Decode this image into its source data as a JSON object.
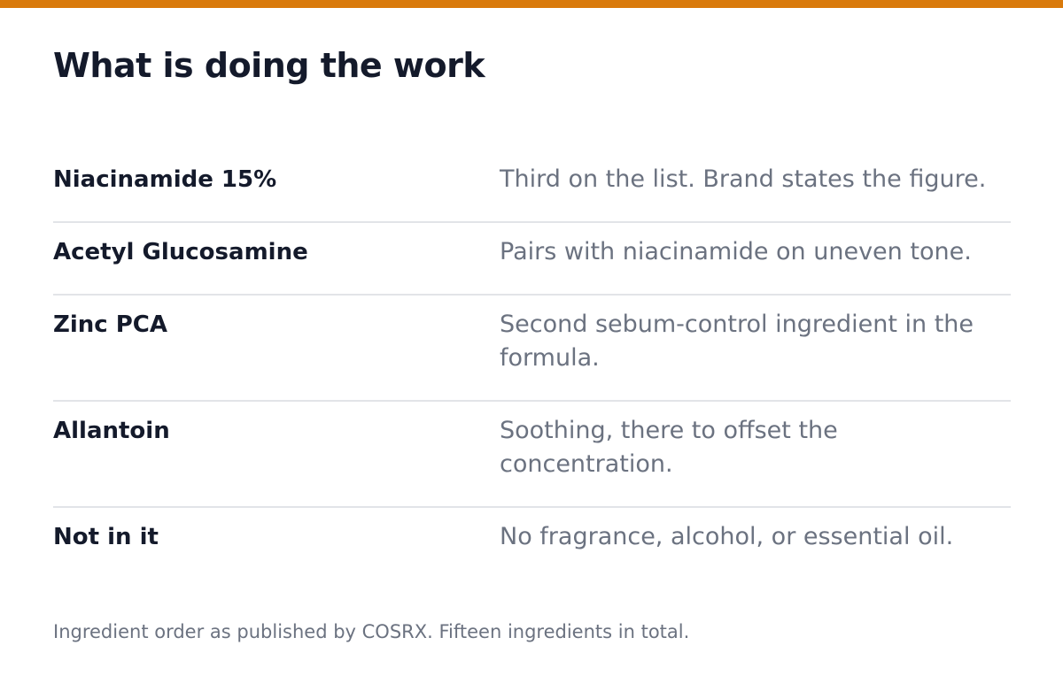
{
  "header": {
    "title": "What is doing the work"
  },
  "table": {
    "rows": [
      [
        "Niacinamide 15%",
        "Third on the list. Brand states the figure."
      ],
      [
        "Acetyl Glucosamine",
        "Pairs with niacinamide on uneven tone."
      ],
      [
        "Zinc PCA",
        "Second sebum-control ingredient in the formula."
      ],
      [
        "Allantoin",
        "Soothing, there to offset the concentration."
      ],
      [
        "Not in it",
        "No fragrance, alcohol, or essential oil."
      ]
    ]
  },
  "footer": {
    "note": "Ingredient order as published by COSRX. Fifteen ingredients in total."
  }
}
